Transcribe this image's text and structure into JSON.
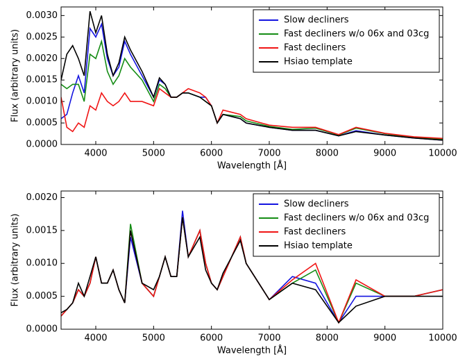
{
  "chart_data": [
    {
      "type": "line",
      "xlabel": "Wavelength [Å]",
      "ylabel": "Flux (arbitrary units)",
      "x": [
        3400,
        3500,
        3600,
        3700,
        3800,
        3900,
        4000,
        4100,
        4200,
        4300,
        4400,
        4500,
        4600,
        4800,
        5000,
        5100,
        5200,
        5300,
        5400,
        5500,
        5600,
        5800,
        5900,
        6000,
        6100,
        6200,
        6500,
        6600,
        7000,
        7400,
        7800,
        8200,
        8500,
        9000,
        9500,
        10000
      ],
      "xlim": [
        3400,
        10000
      ],
      "xticks": [
        4000,
        5000,
        6000,
        7000,
        8000,
        9000,
        10000
      ],
      "ylim": [
        0,
        0.0032
      ],
      "yticks": [
        {
          "value": 0,
          "label": "0.0000"
        },
        {
          "value": 0.0005,
          "label": "0.0005"
        },
        {
          "value": 0.001,
          "label": "0.0010"
        },
        {
          "value": 0.0015,
          "label": "0.0015"
        },
        {
          "value": 0.002,
          "label": "0.0020"
        },
        {
          "value": 0.0025,
          "label": "0.0025"
        },
        {
          "value": 0.003,
          "label": "0.0030"
        }
      ],
      "legend": "upper right",
      "series": [
        {
          "name": "Slow decliners",
          "color": "#1414e0",
          "values": [
            0.0006,
            0.0007,
            0.0012,
            0.0016,
            0.0012,
            0.0027,
            0.0025,
            0.0028,
            0.002,
            0.0016,
            0.0018,
            0.0024,
            0.0021,
            0.0016,
            0.0011,
            0.0015,
            0.0014,
            0.0011,
            0.0011,
            0.0012,
            0.0012,
            0.0011,
            0.0011,
            0.0009,
            0.0005,
            0.0007,
            0.0006,
            0.0005,
            0.0004,
            0.00033,
            0.00033,
            0.0002,
            0.00032,
            0.00022,
            0.00015,
            0.0001
          ]
        },
        {
          "name": "Fast decliners w/o 06x and 03cg",
          "color": "#148c14",
          "values": [
            0.0014,
            0.0013,
            0.0014,
            0.0014,
            0.001,
            0.0021,
            0.002,
            0.0024,
            0.0017,
            0.0014,
            0.0016,
            0.002,
            0.0018,
            0.0015,
            0.001,
            0.0014,
            0.0013,
            0.0011,
            0.0011,
            0.0012,
            0.0012,
            0.0011,
            0.001,
            0.0009,
            0.0005,
            0.0007,
            0.00065,
            0.00055,
            0.00042,
            0.00035,
            0.00038,
            0.00022,
            0.00038,
            0.00025,
            0.00016,
            0.00012
          ]
        },
        {
          "name": "Fast decliners",
          "color": "#f01414",
          "values": [
            0.0011,
            0.0004,
            0.0003,
            0.0005,
            0.0004,
            0.0009,
            0.0008,
            0.0012,
            0.001,
            0.0009,
            0.001,
            0.0012,
            0.001,
            0.001,
            0.0009,
            0.0013,
            0.0012,
            0.0011,
            0.0011,
            0.0012,
            0.0013,
            0.0012,
            0.0011,
            0.0009,
            0.0005,
            0.0008,
            0.0007,
            0.0006,
            0.00045,
            0.0004,
            0.0004,
            0.00023,
            0.0004,
            0.00026,
            0.00018,
            0.00014
          ]
        },
        {
          "name": "Hsiao template",
          "color": "#000000",
          "values": [
            0.0015,
            0.0021,
            0.0023,
            0.002,
            0.0016,
            0.0031,
            0.0026,
            0.003,
            0.0021,
            0.0016,
            0.0019,
            0.0025,
            0.0022,
            0.0017,
            0.0011,
            0.00155,
            0.0014,
            0.0011,
            0.0011,
            0.0012,
            0.0012,
            0.0011,
            0.001,
            0.0009,
            0.0005,
            0.0007,
            0.0006,
            0.0005,
            0.0004,
            0.00033,
            0.00033,
            0.0002,
            0.0003,
            0.00022,
            0.00015,
            0.0001
          ]
        }
      ]
    },
    {
      "type": "line",
      "xlabel": "Wavelength [Å]",
      "ylabel": "Flux (arbitrary units)",
      "x": [
        3400,
        3500,
        3600,
        3700,
        3800,
        3900,
        4000,
        4100,
        4200,
        4300,
        4400,
        4500,
        4600,
        4800,
        5000,
        5100,
        5200,
        5300,
        5400,
        5500,
        5600,
        5800,
        5900,
        6000,
        6100,
        6200,
        6500,
        6600,
        7000,
        7400,
        7800,
        8200,
        8500,
        9000,
        9500,
        10000
      ],
      "xlim": [
        3400,
        10000
      ],
      "xticks": [
        4000,
        5000,
        6000,
        7000,
        8000,
        9000,
        10000
      ],
      "ylim": [
        0,
        0.0021
      ],
      "yticks": [
        {
          "value": 0,
          "label": "0.0000"
        },
        {
          "value": 0.0005,
          "label": "0.0005"
        },
        {
          "value": 0.001,
          "label": "0.0010"
        },
        {
          "value": 0.0015,
          "label": "0.0015"
        },
        {
          "value": 0.002,
          "label": "0.0020"
        }
      ],
      "legend": "upper right",
      "series": [
        {
          "name": "Slow decliners",
          "color": "#1414e0",
          "values": [
            0.0002,
            0.0003,
            0.0004,
            0.0006,
            0.0005,
            0.0007,
            0.0011,
            0.0007,
            0.0007,
            0.0009,
            0.0006,
            0.0004,
            0.0014,
            0.0007,
            0.0005,
            0.0008,
            0.0011,
            0.0008,
            0.0008,
            0.0018,
            0.0011,
            0.0015,
            0.001,
            0.0007,
            0.0006,
            0.0008,
            0.0014,
            0.001,
            0.00045,
            0.0008,
            0.0007,
            0.0001,
            0.0005,
            0.0005,
            0.0005,
            0.0006
          ]
        },
        {
          "name": "Fast decliners w/o 06x and 03cg",
          "color": "#148c14",
          "values": [
            0.0002,
            0.0003,
            0.0004,
            0.0006,
            0.0005,
            0.0007,
            0.0011,
            0.0007,
            0.0007,
            0.0009,
            0.0006,
            0.0004,
            0.0016,
            0.0007,
            0.0005,
            0.0008,
            0.0011,
            0.0008,
            0.0008,
            0.0017,
            0.0011,
            0.0015,
            0.001,
            0.0007,
            0.0006,
            0.0008,
            0.0014,
            0.001,
            0.00045,
            0.0007,
            0.0009,
            0.0001,
            0.0007,
            0.0005,
            0.0005,
            0.0006
          ]
        },
        {
          "name": "Fast decliners",
          "color": "#f01414",
          "values": [
            0.0002,
            0.0003,
            0.0004,
            0.0006,
            0.0005,
            0.0007,
            0.0011,
            0.0007,
            0.0007,
            0.0009,
            0.0006,
            0.0004,
            0.0015,
            0.0007,
            0.0005,
            0.0008,
            0.0011,
            0.0008,
            0.0008,
            0.0017,
            0.0011,
            0.0015,
            0.001,
            0.0007,
            0.0006,
            0.0008,
            0.0014,
            0.001,
            0.00045,
            0.00075,
            0.001,
            0.0001,
            0.00075,
            0.0005,
            0.0005,
            0.0006
          ]
        },
        {
          "name": "Hsiao template",
          "color": "#000000",
          "values": [
            0.00025,
            0.0003,
            0.0004,
            0.0007,
            0.0005,
            0.0008,
            0.0011,
            0.0007,
            0.0007,
            0.0009,
            0.0006,
            0.0004,
            0.0015,
            0.0007,
            0.0006,
            0.0008,
            0.0011,
            0.0008,
            0.0008,
            0.0017,
            0.0011,
            0.0014,
            0.0009,
            0.0007,
            0.0006,
            0.00085,
            0.00135,
            0.001,
            0.00045,
            0.0007,
            0.0006,
            0.0001,
            0.00035,
            0.0005,
            0.0005,
            0.0005
          ]
        }
      ]
    }
  ]
}
